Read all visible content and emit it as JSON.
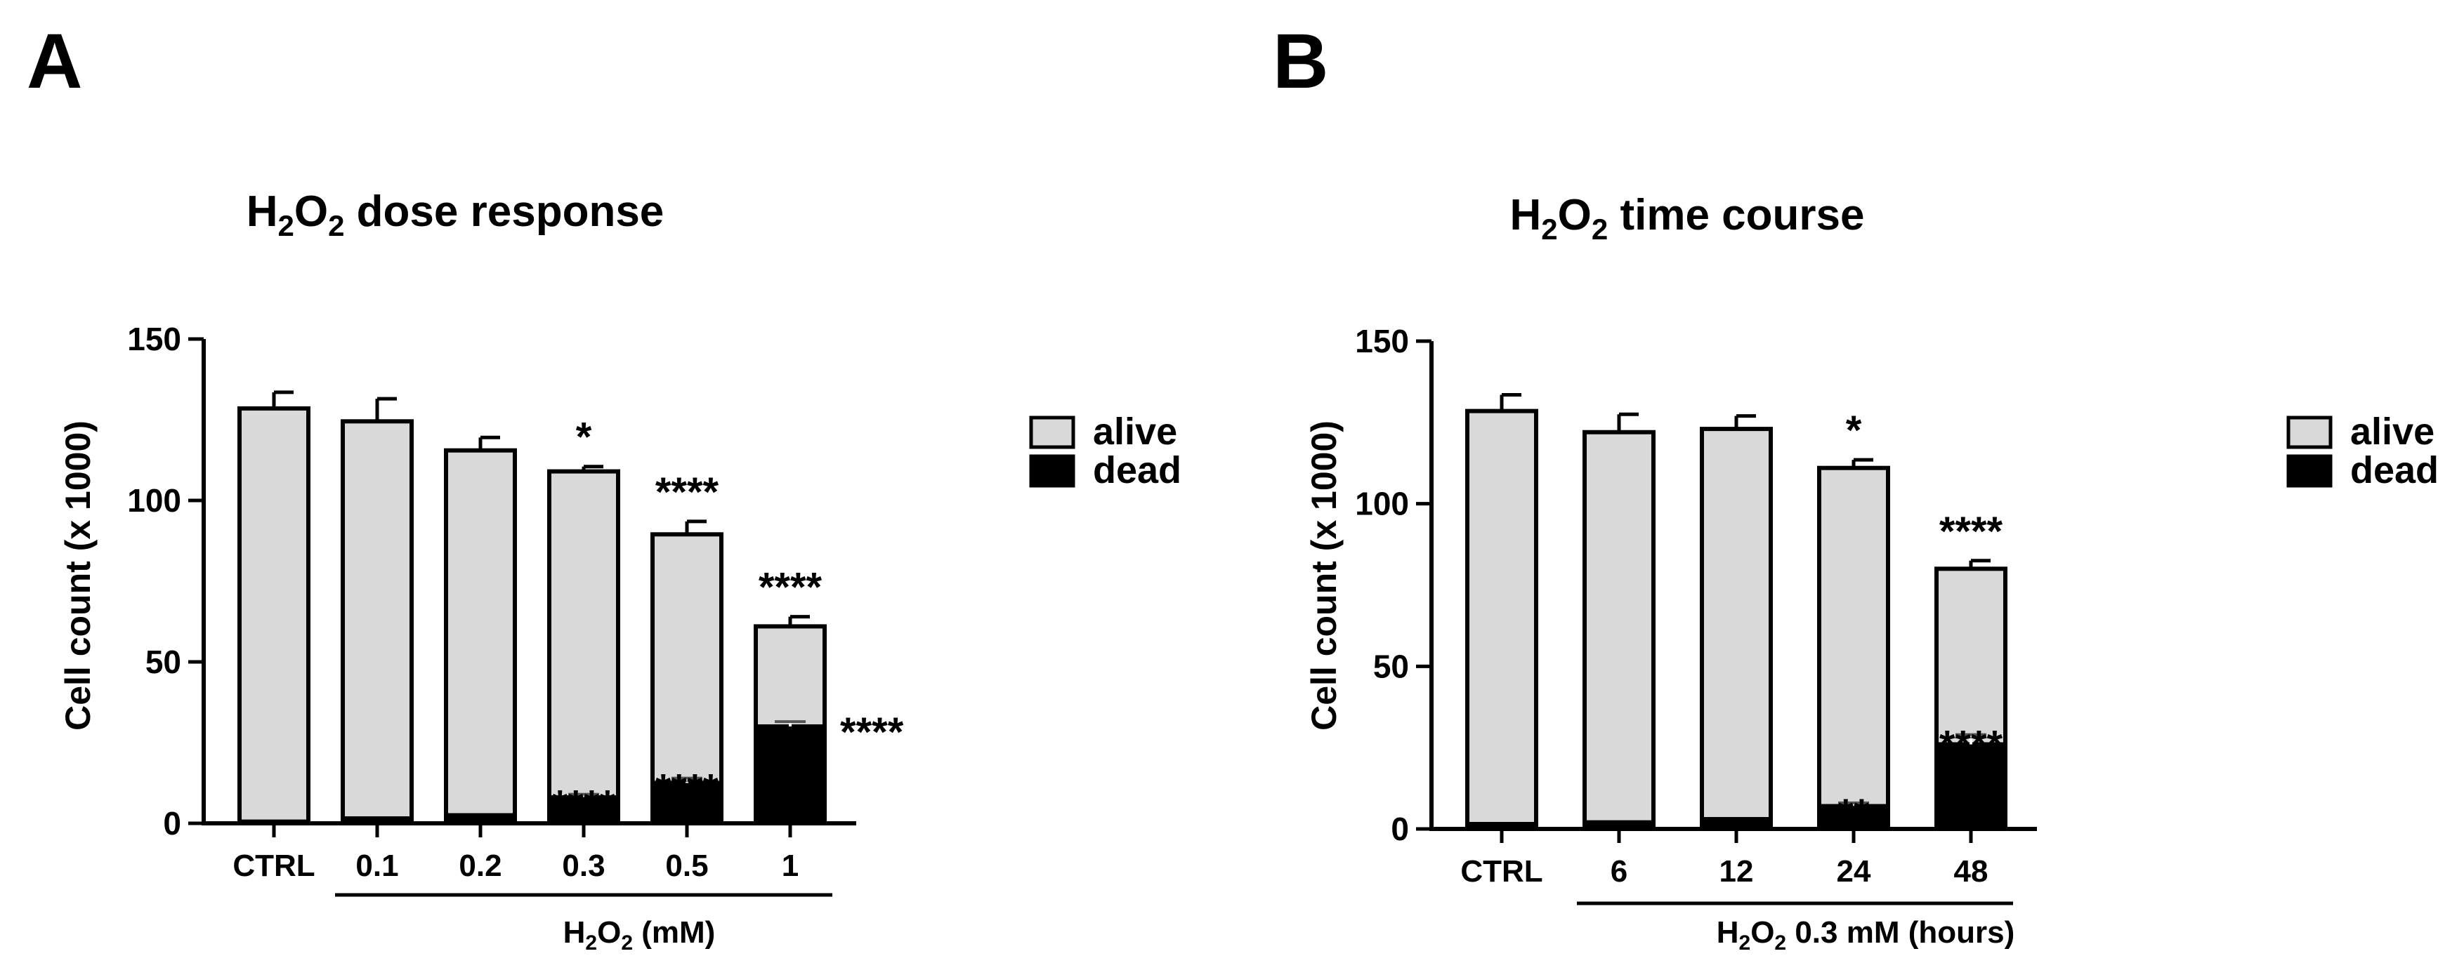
{
  "chart_data": [
    {
      "panel": "A",
      "type": "bar",
      "stacked": true,
      "title": "H2O2 dose response",
      "ylabel": "Cell count (x 1000)",
      "ylim": [
        0,
        150
      ],
      "yticks": [
        0,
        50,
        100,
        150
      ],
      "categories": [
        "CTRL",
        "0.1",
        "0.2",
        "0.3",
        "0.5",
        "1"
      ],
      "group_label": "H2O2 (mM)",
      "group_range": [
        1,
        5
      ],
      "series": [
        {
          "name": "alive",
          "color": "#d9d9d9",
          "values": [
            128,
            123,
            113,
            101,
            77,
            31
          ],
          "error": [
            5,
            7,
            4,
            1.5,
            4,
            3
          ]
        },
        {
          "name": "dead",
          "color": "#000000",
          "values": [
            0.5,
            1.5,
            2.5,
            8,
            12.5,
            30
          ],
          "error": [
            0,
            0,
            0,
            1,
            1.5,
            1.5
          ]
        }
      ],
      "significance_total": [
        "",
        "",
        "",
        "*",
        "****",
        "****"
      ],
      "significance_dead": [
        "",
        "",
        "",
        "****",
        "****",
        "****"
      ],
      "legend": {
        "position": "right",
        "entries": [
          "alive",
          "dead"
        ]
      }
    },
    {
      "panel": "B",
      "type": "bar",
      "stacked": true,
      "title": "H2O2 time course",
      "ylabel": "Cell count (x 1000)",
      "ylim": [
        0,
        150
      ],
      "yticks": [
        0,
        50,
        100,
        150
      ],
      "categories": [
        "CTRL",
        "6",
        "12",
        "24",
        "48"
      ],
      "group_label": "H2O2 0.3 mM (hours)",
      "group_range": [
        1,
        4
      ],
      "series": [
        {
          "name": "alive",
          "color": "#d9d9d9",
          "values": [
            127,
            120,
            120,
            104,
            54
          ],
          "error": [
            5,
            5.5,
            4,
            2.5,
            2.5
          ]
        },
        {
          "name": "dead",
          "color": "#000000",
          "values": [
            1.5,
            2,
            3,
            7,
            26
          ],
          "error": [
            0,
            0,
            0,
            1,
            3
          ]
        }
      ],
      "significance_total": [
        "",
        "",
        "",
        "*",
        "****"
      ],
      "significance_dead": [
        "",
        "",
        "",
        "**",
        "****"
      ],
      "legend": {
        "position": "right",
        "entries": [
          "alive",
          "dead"
        ]
      }
    }
  ]
}
